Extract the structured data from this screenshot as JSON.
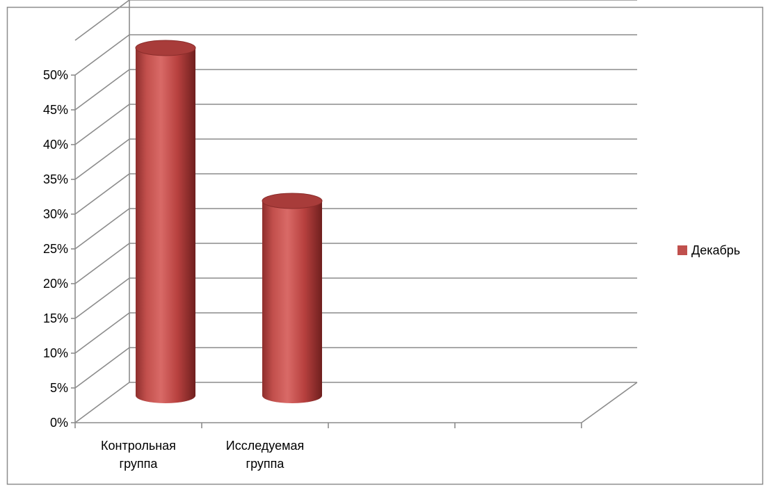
{
  "chart_data": {
    "type": "bar",
    "style": "3d-cylinder",
    "categories": [
      [
        "Контрольная",
        "группа"
      ],
      [
        "Исследуемая",
        "группа"
      ],
      [],
      []
    ],
    "series": [
      {
        "name": "Декабрь",
        "values": [
          50,
          28,
          null,
          null
        ],
        "color": "#c0504d"
      }
    ],
    "y_ticks": [
      "0%",
      "5%",
      "10%",
      "15%",
      "20%",
      "25%",
      "30%",
      "35%",
      "40%",
      "45%",
      "50%"
    ],
    "ylim": [
      0,
      55
    ],
    "y_unit": "%",
    "grid": true,
    "legend_position": "right"
  },
  "colors": {
    "border": "#8c8c8c",
    "grid": "#8c8c8c",
    "axis": "#8c8c8c",
    "bar": "#c0504d",
    "bar_dark": "#7b2524",
    "bar_light": "#e07a77",
    "bar_top": "#a83c3a",
    "legend_swatch": "#c0504d"
  }
}
